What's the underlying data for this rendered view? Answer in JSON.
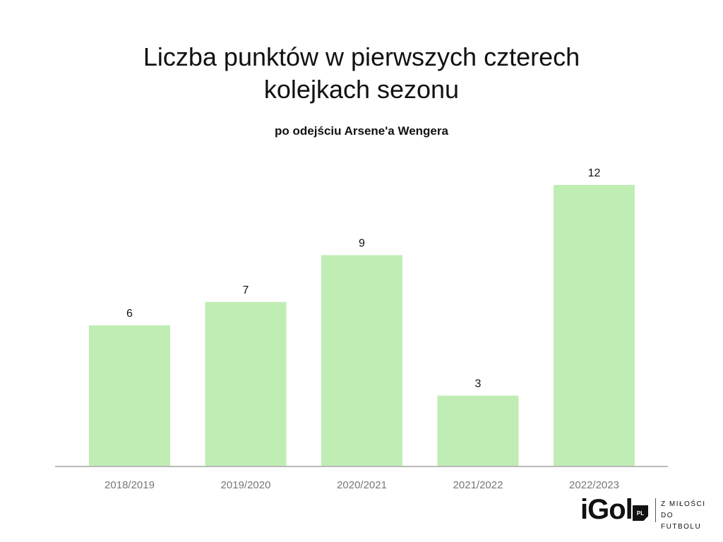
{
  "chart_data": {
    "type": "bar",
    "title_lines": [
      "Liczba punktów w pierwszych czterech",
      "kolejkach sezonu"
    ],
    "subtitle": "po odejściu Arsene'a Wengera",
    "categories": [
      "2018/2019",
      "2019/2020",
      "2020/2021",
      "2021/2022",
      "2022/2023"
    ],
    "values": [
      6,
      7,
      9,
      3,
      12
    ],
    "data_labels": [
      "6",
      "7",
      "9",
      "3",
      "12"
    ],
    "ylim": [
      0,
      12
    ],
    "grid": false,
    "bar_color": "#c0edb4",
    "axis_color": "#bbbbbb",
    "tick_label_color": "#777777"
  },
  "brand": {
    "logo": "iGol",
    "badge": "PL",
    "tagline": [
      "Z MIŁOŚCI",
      "DO FUTBOLU"
    ]
  }
}
